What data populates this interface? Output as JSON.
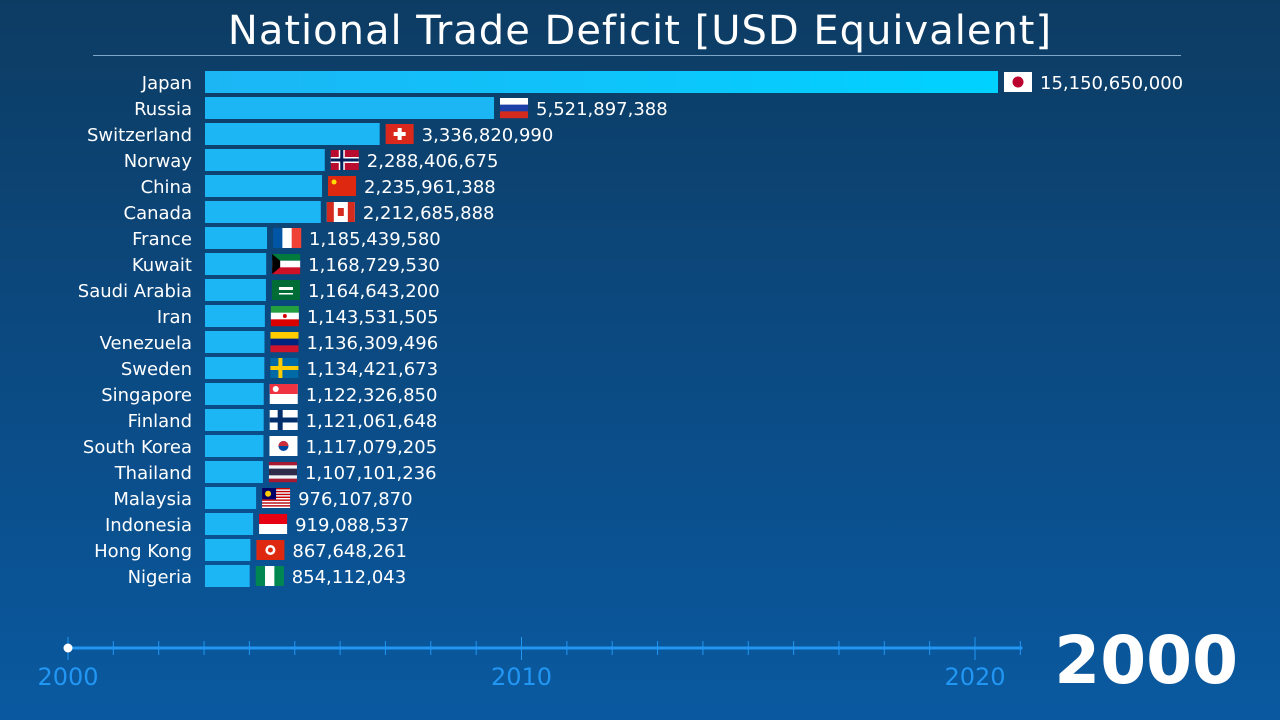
{
  "chart_data": {
    "type": "bar",
    "title": "National Trade Deficit [USD Equivalent]",
    "orientation": "horizontal",
    "categories": [
      "Japan",
      "Russia",
      "Switzerland",
      "Norway",
      "China",
      "Canada",
      "France",
      "Kuwait",
      "Saudi Arabia",
      "Iran",
      "Venezuela",
      "Sweden",
      "Singapore",
      "Finland",
      "South Korea",
      "Thailand",
      "Malaysia",
      "Indonesia",
      "Hong Kong",
      "Nigeria"
    ],
    "values": [
      15150650000,
      5521897388,
      3336820990,
      2288406675,
      2235961388,
      2212685888,
      1185439580,
      1168729530,
      1164643200,
      1143531505,
      1136309496,
      1134421673,
      1122326850,
      1121061648,
      1117079205,
      1107101236,
      976107870,
      919088537,
      867648261,
      854112043
    ],
    "value_labels": [
      "15,150,650,000",
      "5,521,897,388",
      "3,336,820,990",
      "2,288,406,675",
      "2,235,961,388",
      "2,212,685,888",
      "1,185,439,580",
      "1,168,729,530",
      "1,164,643,200",
      "1,143,531,505",
      "1,136,309,496",
      "1,134,421,673",
      "1,122,326,850",
      "1,121,061,648",
      "1,117,079,205",
      "1,107,101,236",
      "976,107,870",
      "919,088,537",
      "867,648,261",
      "854,112,043"
    ],
    "bar_color": "#1cb6f5",
    "leader_color": "#00d2ff",
    "timeline": {
      "start": 2000,
      "end": 2021,
      "current": 2000,
      "tick_labels": [
        "2000",
        "2010",
        "2020"
      ],
      "color": "#2196f3"
    },
    "current_year_label": "2000"
  }
}
